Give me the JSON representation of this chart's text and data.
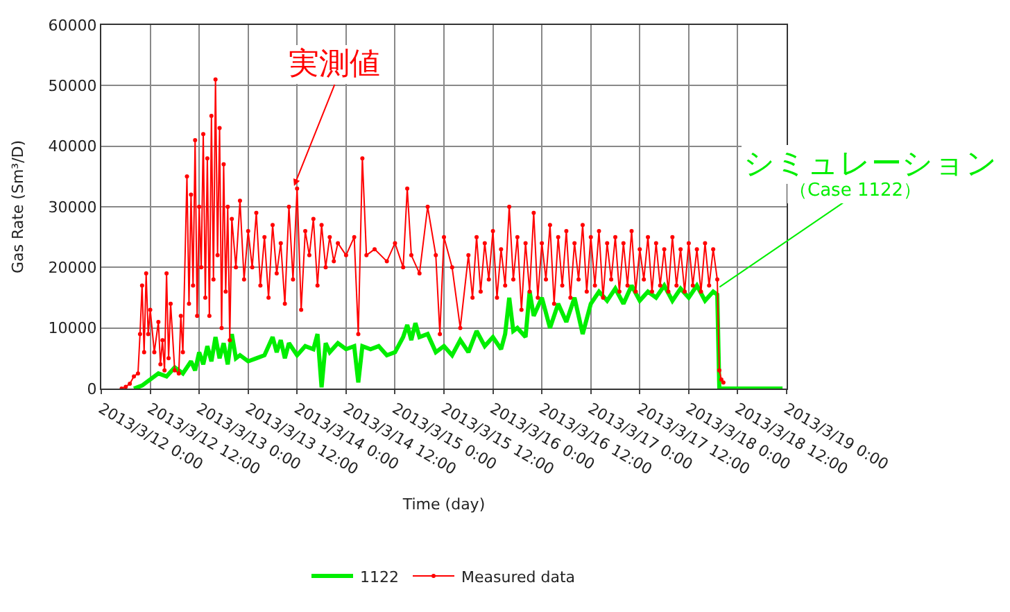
{
  "chart_data": {
    "type": "line",
    "xlabel": "Time (day)",
    "ylabel": "Gas Rate (Sm³/D)",
    "xlim": [
      "2013-03-12T00:00",
      "2013-03-19T00:00"
    ],
    "xticks": [
      {
        "value": "2013-03-12T00:00",
        "label": "2013/3/12 0:00"
      },
      {
        "value": "2013-03-12T12:00",
        "label": "2013/3/12 12:00"
      },
      {
        "value": "2013-03-13T00:00",
        "label": "2013/3/13 0:00"
      },
      {
        "value": "2013-03-13T12:00",
        "label": "2013/3/13 12:00"
      },
      {
        "value": "2013-03-14T00:00",
        "label": "2013/3/14 0:00"
      },
      {
        "value": "2013-03-14T12:00",
        "label": "2013/3/14 12:00"
      },
      {
        "value": "2013-03-15T00:00",
        "label": "2013/3/15 0:00"
      },
      {
        "value": "2013-03-15T12:00",
        "label": "2013/3/15 12:00"
      },
      {
        "value": "2013-03-16T00:00",
        "label": "2013/3/16 0:00"
      },
      {
        "value": "2013-03-16T12:00",
        "label": "2013/3/16 12:00"
      },
      {
        "value": "2013-03-17T00:00",
        "label": "2013/3/17 0:00"
      },
      {
        "value": "2013-03-17T12:00",
        "label": "2013/3/17 12:00"
      },
      {
        "value": "2013-03-18T00:00",
        "label": "2013/3/18 0:00"
      },
      {
        "value": "2013-03-18T12:00",
        "label": "2013/3/18 12:00"
      },
      {
        "value": "2013-03-19T00:00",
        "label": "2013/3/19 0:00"
      }
    ],
    "ylim": [
      0,
      60000
    ],
    "yticks": [
      0,
      10000,
      20000,
      30000,
      40000,
      50000,
      60000
    ],
    "grid": true,
    "legend": "bottom",
    "series": [
      {
        "name": "1122",
        "color": "#00ee00",
        "marker": "none",
        "x": [
          "2013-03-12T08:00",
          "2013-03-12T10:00",
          "2013-03-12T12:00",
          "2013-03-12T14:00",
          "2013-03-12T16:00",
          "2013-03-12T18:00",
          "2013-03-12T20:00",
          "2013-03-12T22:00",
          "2013-03-12T23:00",
          "2013-03-13T00:00",
          "2013-03-13T01:00",
          "2013-03-13T02:00",
          "2013-03-13T03:00",
          "2013-03-13T04:00",
          "2013-03-13T05:00",
          "2013-03-13T06:00",
          "2013-03-13T07:00",
          "2013-03-13T08:00",
          "2013-03-13T09:00",
          "2013-03-13T10:00",
          "2013-03-13T12:00",
          "2013-03-13T14:00",
          "2013-03-13T16:00",
          "2013-03-13T18:00",
          "2013-03-13T19:00",
          "2013-03-13T20:00",
          "2013-03-13T21:00",
          "2013-03-13T22:00",
          "2013-03-14T00:00",
          "2013-03-14T02:00",
          "2013-03-14T04:00",
          "2013-03-14T05:00",
          "2013-03-14T06:00",
          "2013-03-14T07:00",
          "2013-03-14T08:00",
          "2013-03-14T10:00",
          "2013-03-14T12:00",
          "2013-03-14T14:00",
          "2013-03-14T15:00",
          "2013-03-14T16:00",
          "2013-03-14T18:00",
          "2013-03-14T20:00",
          "2013-03-14T22:00",
          "2013-03-15T00:00",
          "2013-03-15T02:00",
          "2013-03-15T03:00",
          "2013-03-15T04:00",
          "2013-03-15T05:00",
          "2013-03-15T06:00",
          "2013-03-15T08:00",
          "2013-03-15T10:00",
          "2013-03-15T12:00",
          "2013-03-15T14:00",
          "2013-03-15T16:00",
          "2013-03-15T18:00",
          "2013-03-15T20:00",
          "2013-03-15T22:00",
          "2013-03-16T00:00",
          "2013-03-16T02:00",
          "2013-03-16T03:00",
          "2013-03-16T04:00",
          "2013-03-16T05:00",
          "2013-03-16T06:00",
          "2013-03-16T08:00",
          "2013-03-16T09:00",
          "2013-03-16T10:00",
          "2013-03-16T12:00",
          "2013-03-16T14:00",
          "2013-03-16T16:00",
          "2013-03-16T18:00",
          "2013-03-16T20:00",
          "2013-03-16T22:00",
          "2013-03-17T00:00",
          "2013-03-17T02:00",
          "2013-03-17T04:00",
          "2013-03-17T06:00",
          "2013-03-17T08:00",
          "2013-03-17T10:00",
          "2013-03-17T12:00",
          "2013-03-17T14:00",
          "2013-03-17T16:00",
          "2013-03-17T18:00",
          "2013-03-17T20:00",
          "2013-03-17T22:00",
          "2013-03-18T00:00",
          "2013-03-18T02:00",
          "2013-03-18T04:00",
          "2013-03-18T06:00",
          "2013-03-18T07:00",
          "2013-03-18T07:30",
          "2013-03-18T23:00"
        ],
        "values": [
          0,
          500,
          1500,
          2500,
          2000,
          3500,
          2500,
          4500,
          3000,
          6000,
          4000,
          7000,
          4500,
          8500,
          5000,
          7500,
          4000,
          9000,
          5000,
          5500,
          4500,
          5000,
          5500,
          8500,
          6000,
          8000,
          5000,
          7500,
          5500,
          7000,
          6500,
          9000,
          200,
          7500,
          6000,
          7500,
          6500,
          7000,
          1000,
          7000,
          6500,
          7000,
          5500,
          6000,
          8500,
          10500,
          8000,
          10800,
          8500,
          9000,
          6000,
          7000,
          5500,
          8000,
          6000,
          9500,
          7000,
          8500,
          6500,
          9000,
          15000,
          9500,
          10000,
          8500,
          16000,
          12000,
          15000,
          10000,
          14000,
          11000,
          15000,
          9000,
          14000,
          16000,
          14500,
          16500,
          14000,
          17000,
          14500,
          16000,
          15000,
          17000,
          14500,
          16500,
          15000,
          17000,
          14500,
          16000,
          15500,
          0,
          0
        ]
      },
      {
        "name": "Measured data",
        "color": "#ff0000",
        "marker": "circle",
        "x": [
          "2013-03-12T05:00",
          "2013-03-12T06:00",
          "2013-03-12T07:00",
          "2013-03-12T08:00",
          "2013-03-12T09:00",
          "2013-03-12T09:30",
          "2013-03-12T10:00",
          "2013-03-12T10:30",
          "2013-03-12T11:00",
          "2013-03-12T11:30",
          "2013-03-12T12:00",
          "2013-03-12T13:00",
          "2013-03-12T14:00",
          "2013-03-12T14:30",
          "2013-03-12T15:00",
          "2013-03-12T15:30",
          "2013-03-12T16:00",
          "2013-03-12T16:30",
          "2013-03-12T17:00",
          "2013-03-12T18:00",
          "2013-03-12T19:00",
          "2013-03-12T19:30",
          "2013-03-12T20:00",
          "2013-03-12T21:00",
          "2013-03-12T21:30",
          "2013-03-12T22:00",
          "2013-03-12T22:30",
          "2013-03-12T23:00",
          "2013-03-12T23:30",
          "2013-03-13T00:00",
          "2013-03-13T00:30",
          "2013-03-13T01:00",
          "2013-03-13T01:30",
          "2013-03-13T02:00",
          "2013-03-13T02:30",
          "2013-03-13T03:00",
          "2013-03-13T03:30",
          "2013-03-13T04:00",
          "2013-03-13T04:30",
          "2013-03-13T05:00",
          "2013-03-13T05:30",
          "2013-03-13T06:00",
          "2013-03-13T06:30",
          "2013-03-13T07:00",
          "2013-03-13T07:30",
          "2013-03-13T08:00",
          "2013-03-13T09:00",
          "2013-03-13T10:00",
          "2013-03-13T11:00",
          "2013-03-13T12:00",
          "2013-03-13T13:00",
          "2013-03-13T14:00",
          "2013-03-13T15:00",
          "2013-03-13T16:00",
          "2013-03-13T17:00",
          "2013-03-13T18:00",
          "2013-03-13T19:00",
          "2013-03-13T20:00",
          "2013-03-13T21:00",
          "2013-03-13T22:00",
          "2013-03-13T23:00",
          "2013-03-14T00:00",
          "2013-03-14T01:00",
          "2013-03-14T02:00",
          "2013-03-14T03:00",
          "2013-03-14T04:00",
          "2013-03-14T05:00",
          "2013-03-14T06:00",
          "2013-03-14T07:00",
          "2013-03-14T08:00",
          "2013-03-14T09:00",
          "2013-03-14T10:00",
          "2013-03-14T12:00",
          "2013-03-14T14:00",
          "2013-03-14T15:00",
          "2013-03-14T16:00",
          "2013-03-14T17:00",
          "2013-03-14T19:00",
          "2013-03-14T22:00",
          "2013-03-15T00:00",
          "2013-03-15T02:00",
          "2013-03-15T03:00",
          "2013-03-15T04:00",
          "2013-03-15T06:00",
          "2013-03-15T08:00",
          "2013-03-15T10:00",
          "2013-03-15T11:00",
          "2013-03-15T12:00",
          "2013-03-15T14:00",
          "2013-03-15T16:00",
          "2013-03-15T18:00",
          "2013-03-15T19:00",
          "2013-03-15T20:00",
          "2013-03-15T21:00",
          "2013-03-15T22:00",
          "2013-03-15T23:00",
          "2013-03-16T00:00",
          "2013-03-16T01:00",
          "2013-03-16T02:00",
          "2013-03-16T03:00",
          "2013-03-16T04:00",
          "2013-03-16T05:00",
          "2013-03-16T06:00",
          "2013-03-16T07:00",
          "2013-03-16T08:00",
          "2013-03-16T09:00",
          "2013-03-16T10:00",
          "2013-03-16T11:00",
          "2013-03-16T12:00",
          "2013-03-16T13:00",
          "2013-03-16T14:00",
          "2013-03-16T15:00",
          "2013-03-16T16:00",
          "2013-03-16T17:00",
          "2013-03-16T18:00",
          "2013-03-16T19:00",
          "2013-03-16T20:00",
          "2013-03-16T21:00",
          "2013-03-16T22:00",
          "2013-03-16T23:00",
          "2013-03-17T00:00",
          "2013-03-17T01:00",
          "2013-03-17T02:00",
          "2013-03-17T03:00",
          "2013-03-17T04:00",
          "2013-03-17T05:00",
          "2013-03-17T06:00",
          "2013-03-17T07:00",
          "2013-03-17T08:00",
          "2013-03-17T09:00",
          "2013-03-17T10:00",
          "2013-03-17T11:00",
          "2013-03-17T12:00",
          "2013-03-17T13:00",
          "2013-03-17T14:00",
          "2013-03-17T15:00",
          "2013-03-17T16:00",
          "2013-03-17T17:00",
          "2013-03-17T18:00",
          "2013-03-17T19:00",
          "2013-03-17T20:00",
          "2013-03-17T21:00",
          "2013-03-17T22:00",
          "2013-03-17T23:00",
          "2013-03-18T00:00",
          "2013-03-18T01:00",
          "2013-03-18T02:00",
          "2013-03-18T03:00",
          "2013-03-18T04:00",
          "2013-03-18T05:00",
          "2013-03-18T06:00",
          "2013-03-18T07:00",
          "2013-03-18T07:30",
          "2013-03-18T08:00",
          "2013-03-18T08:30"
        ],
        "values": [
          0,
          300,
          800,
          2000,
          2500,
          9000,
          17000,
          6000,
          19000,
          9000,
          13000,
          6000,
          11000,
          4000,
          8000,
          3000,
          19000,
          5000,
          14000,
          3000,
          2500,
          12000,
          6000,
          35000,
          14000,
          32000,
          17000,
          41000,
          12000,
          30000,
          20000,
          42000,
          15000,
          38000,
          12000,
          45000,
          18000,
          51000,
          22000,
          43000,
          10000,
          37000,
          16000,
          30000,
          8000,
          28000,
          20000,
          31000,
          18000,
          26000,
          20000,
          29000,
          17000,
          25000,
          15000,
          27000,
          19000,
          24000,
          14000,
          30000,
          18000,
          33000,
          13000,
          26000,
          22000,
          28000,
          17000,
          27000,
          20000,
          25000,
          21000,
          24000,
          22000,
          25000,
          9000,
          38000,
          22000,
          23000,
          21000,
          24000,
          20000,
          33000,
          22000,
          19000,
          30000,
          22000,
          9000,
          25000,
          20000,
          10000,
          22000,
          15000,
          25000,
          16000,
          24000,
          18000,
          26000,
          15000,
          23000,
          17000,
          30000,
          18000,
          25000,
          13000,
          24000,
          16000,
          29000,
          15000,
          24000,
          18000,
          27000,
          14000,
          25000,
          17000,
          26000,
          15000,
          24000,
          18000,
          27000,
          16000,
          25000,
          17000,
          26000,
          15000,
          24000,
          18000,
          25000,
          16000,
          24000,
          17000,
          26000,
          16000,
          23000,
          18000,
          25000,
          16000,
          24000,
          17000,
          23000,
          16000,
          25000,
          17000,
          23000,
          16000,
          24000,
          17000,
          23000,
          16000,
          24000,
          17000,
          23000,
          18000,
          3000,
          1500,
          1000
        ]
      }
    ],
    "annotations": [
      {
        "text": "実測値",
        "x": "2013-03-13T23:00",
        "y": 33000
      },
      {
        "text": "シミュレーション",
        "x": "2013-03-18T07:00",
        "y": 16500
      },
      "（Case 1122）"
    ]
  }
}
